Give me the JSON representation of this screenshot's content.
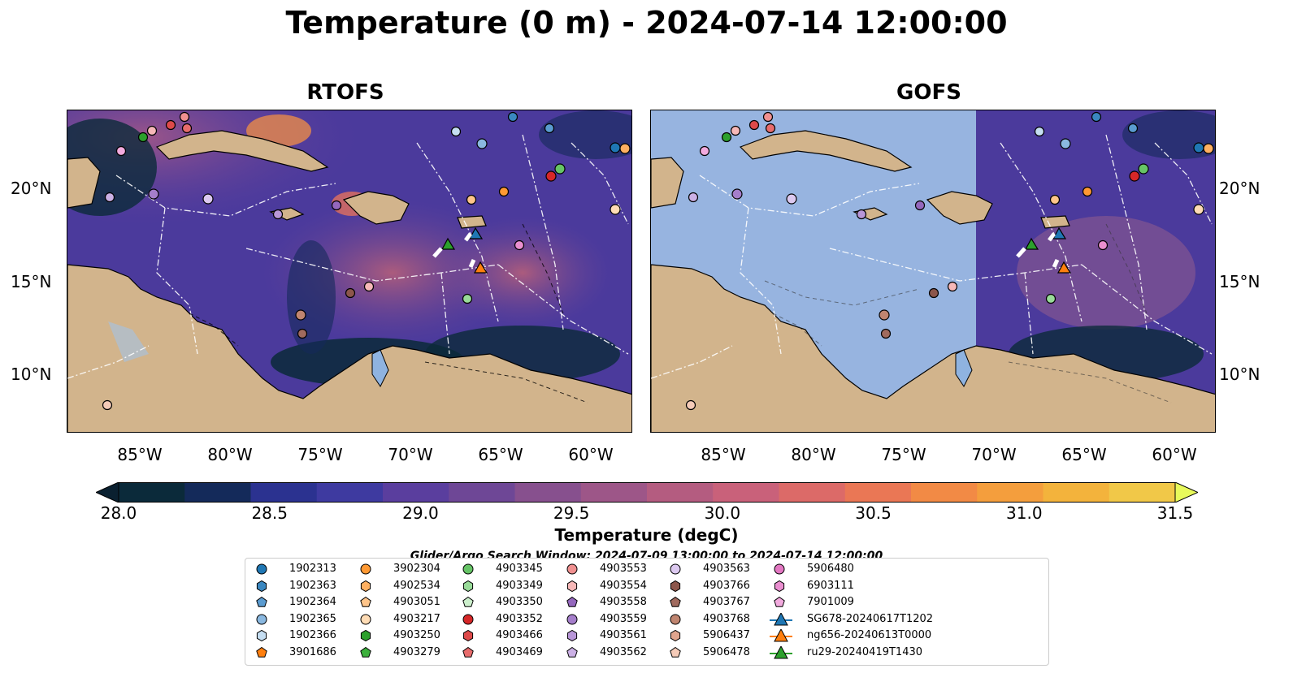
{
  "title": "Temperature (0 m) - 2024-07-14 12:00:00",
  "panels": [
    {
      "title": "RTOFS"
    },
    {
      "title": "GOFS"
    }
  ],
  "lat_labels": [
    "20°N",
    "15°N",
    "10°N"
  ],
  "lon_labels": [
    "85°W",
    "80°W",
    "75°W",
    "70°W",
    "65°W",
    "60°W"
  ],
  "colorbar": {
    "label": "Temperature (degC)",
    "ticks": [
      "28.0",
      "28.5",
      "29.0",
      "29.5",
      "30.0",
      "30.5",
      "31.0",
      "31.5"
    ],
    "colors": [
      "#0b2a3a",
      "#142a5a",
      "#2b3290",
      "#3e3aa0",
      "#5a3e9e",
      "#6e4796",
      "#87508e",
      "#9d5688",
      "#b45c80",
      "#c9617a",
      "#dc6a68",
      "#ea7755",
      "#f28a45",
      "#f49e3d",
      "#f3b33c",
      "#f1c848"
    ],
    "under_color": "#0a2030",
    "over_color": "#e8fa5b"
  },
  "legend_title": "Glider/Argo Search Window: 2024-07-09 13:00:00 to 2024-07-14 12:00:00",
  "legend": [
    {
      "label": "1902313",
      "marker": "circle",
      "color": "#1f77b4"
    },
    {
      "label": "1902363",
      "marker": "hexagon",
      "color": "#3a87c0"
    },
    {
      "label": "1902364",
      "marker": "pentagon",
      "color": "#5a9bd0"
    },
    {
      "label": "1902365",
      "marker": "circle",
      "color": "#8ab8e0"
    },
    {
      "label": "1902366",
      "marker": "hexagon",
      "color": "#c5def2"
    },
    {
      "label": "3901686",
      "marker": "pentagon",
      "color": "#ff7f0e"
    },
    {
      "label": "3902304",
      "marker": "circle",
      "color": "#ff9933"
    },
    {
      "label": "4902534",
      "marker": "hexagon",
      "color": "#ffb061"
    },
    {
      "label": "4903051",
      "marker": "pentagon",
      "color": "#ffc58a"
    },
    {
      "label": "4903217",
      "marker": "circle",
      "color": "#ffdcb5"
    },
    {
      "label": "4903250",
      "marker": "hexagon",
      "color": "#2ca02c"
    },
    {
      "label": "4903279",
      "marker": "pentagon",
      "color": "#3cb03c"
    },
    {
      "label": "4903345",
      "marker": "circle",
      "color": "#66c466"
    },
    {
      "label": "4903349",
      "marker": "hexagon",
      "color": "#99db99"
    },
    {
      "label": "4903350",
      "marker": "pentagon",
      "color": "#ccefcc"
    },
    {
      "label": "4903352",
      "marker": "circle",
      "color": "#d62728"
    },
    {
      "label": "4903466",
      "marker": "hexagon",
      "color": "#de4a4a"
    },
    {
      "label": "4903469",
      "marker": "pentagon",
      "color": "#e86c6c"
    },
    {
      "label": "4903553",
      "marker": "circle",
      "color": "#f09090"
    },
    {
      "label": "4903554",
      "marker": "hexagon",
      "color": "#f7b8b8"
    },
    {
      "label": "4903558",
      "marker": "pentagon",
      "color": "#9467bd"
    },
    {
      "label": "4903559",
      "marker": "circle",
      "color": "#a57ecb"
    },
    {
      "label": "4903561",
      "marker": "hexagon",
      "color": "#b896d8"
    },
    {
      "label": "4903562",
      "marker": "pentagon",
      "color": "#cbb0e5"
    },
    {
      "label": "4903563",
      "marker": "circle",
      "color": "#dcc9f0"
    },
    {
      "label": "4903766",
      "marker": "hexagon",
      "color": "#8c564b"
    },
    {
      "label": "4903767",
      "marker": "pentagon",
      "color": "#a06a5e"
    },
    {
      "label": "4903768",
      "marker": "circle",
      "color": "#c08570"
    },
    {
      "label": "5906437",
      "marker": "hexagon",
      "color": "#e0a58e"
    },
    {
      "label": "5906478",
      "marker": "pentagon",
      "color": "#f5cbb8"
    },
    {
      "label": "5906480",
      "marker": "circle",
      "color": "#e377c2"
    },
    {
      "label": "6903111",
      "marker": "hexagon",
      "color": "#ea8fd0"
    },
    {
      "label": "7901009",
      "marker": "pentagon",
      "color": "#f2aade"
    },
    {
      "label": "SG678-20240617T1202",
      "marker": "triangle-line",
      "color": "#1f77b4"
    },
    {
      "label": "ng656-20240613T0000",
      "marker": "triangle-line",
      "color": "#ff7f0e"
    },
    {
      "label": "ru29-20240419T1430",
      "marker": "triangle-line",
      "color": "#2ca02c"
    }
  ]
}
